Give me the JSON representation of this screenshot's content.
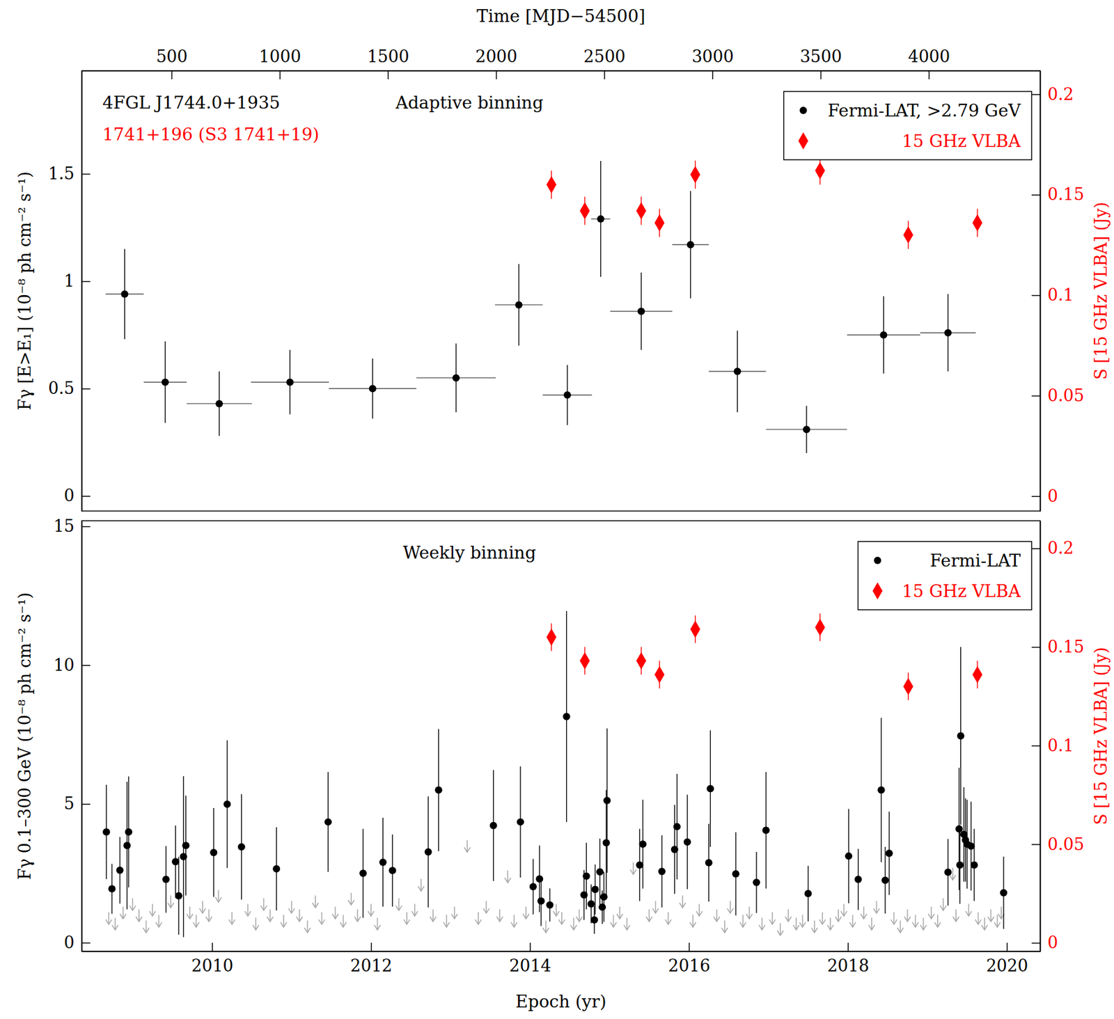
{
  "chart_data": [
    {
      "type": "scatter",
      "title": "Adaptive binning",
      "annotations": [
        {
          "text": "4FGL J1744.0+1935",
          "color": "#000000"
        },
        {
          "text": "1741+196 (S3 1741+19)",
          "color": "#ff0000"
        }
      ],
      "x2label": "Time [MJD−54500]",
      "ylabel": "Fγ [E>E₁] (10⁻⁸ ph cm⁻² s⁻¹)",
      "y2label": "S [15 GHz VLBA] (Jy)",
      "xlim": [
        2008.36,
        2020.42
      ],
      "x2lim": [
        85,
        4515
      ],
      "x2ticks": [
        500,
        1000,
        1500,
        2000,
        2500,
        3000,
        3500,
        4000
      ],
      "ylim": [
        -0.07,
        1.98
      ],
      "yticks": [
        0,
        0.5,
        1,
        1.5
      ],
      "y2lim": [
        -0.0074,
        0.2117
      ],
      "y2ticks": [
        0,
        0.05,
        0.1,
        0.15,
        0.2
      ],
      "legend": "upper right",
      "series": [
        {
          "name": "Fermi-LAT, >2.79 GeV",
          "color": "#000000",
          "marker": "circle",
          "x": [
            2008.9,
            2009.41,
            2010.09,
            2010.98,
            2012.02,
            2013.07,
            2013.86,
            2014.47,
            2014.89,
            2015.4,
            2016.02,
            2016.61,
            2017.48,
            2018.45,
            2019.26
          ],
          "x_err": [
            0.24,
            0.27,
            0.41,
            0.49,
            0.55,
            0.5,
            0.3,
            0.31,
            0.12,
            0.39,
            0.23,
            0.36,
            0.51,
            0.46,
            0.35
          ],
          "values": [
            0.94,
            0.53,
            0.43,
            0.53,
            0.5,
            0.55,
            0.89,
            0.47,
            1.29,
            0.86,
            1.17,
            0.58,
            0.31,
            0.75,
            0.76
          ],
          "y_err": [
            0.21,
            0.19,
            0.15,
            0.15,
            0.14,
            0.16,
            0.19,
            0.14,
            0.27,
            0.18,
            0.25,
            0.19,
            0.11,
            0.18,
            0.18
          ]
        },
        {
          "name": "15 GHz VLBA",
          "color": "#ff0000",
          "marker": "diamond",
          "axis": "y2",
          "x": [
            2014.27,
            2014.69,
            2015.4,
            2015.63,
            2016.08,
            2017.65,
            2018.76,
            2019.63
          ],
          "values": [
            0.155,
            0.142,
            0.142,
            0.136,
            0.16,
            0.162,
            0.13,
            0.136
          ],
          "y_err": [
            0.007,
            0.007,
            0.007,
            0.007,
            0.007,
            0.007,
            0.007,
            0.007
          ]
        }
      ]
    },
    {
      "type": "scatter",
      "title": "Weekly binning",
      "xlabel": "Epoch (yr)",
      "ylabel": "Fγ 0.1–300 GeV (10⁻⁸ ph cm⁻² s⁻¹)",
      "y2label": "S [15 GHz VLBA] (Jy)",
      "xlim": [
        2008.36,
        2020.42
      ],
      "xticks": [
        2010,
        2012,
        2014,
        2016,
        2018,
        2020
      ],
      "ylim": [
        -0.31,
        15.2
      ],
      "yticks": [
        0,
        5,
        10,
        15
      ],
      "y2lim": [
        -0.0043,
        0.214
      ],
      "y2ticks": [
        0,
        0.05,
        0.1,
        0.15,
        0.2
      ],
      "legend": "upper right",
      "series": [
        {
          "name": "Fermi-LAT",
          "color": "#000000",
          "marker": "circle",
          "x": [
            2008.67,
            2008.74,
            2008.84,
            2008.93,
            2008.95,
            2009.42,
            2009.54,
            2009.58,
            2009.64,
            2009.67,
            2010.02,
            2010.19,
            2010.37,
            2010.81,
            2011.46,
            2011.9,
            2012.15,
            2012.27,
            2012.72,
            2012.85,
            2013.54,
            2013.88,
            2014.04,
            2014.12,
            2014.14,
            2014.25,
            2014.46,
            2014.68,
            2014.71,
            2014.77,
            2014.82,
            2014.81,
            2014.88,
            2014.91,
            2014.93,
            2014.96,
            2014.97,
            2015.38,
            2015.42,
            2015.66,
            2015.82,
            2015.85,
            2015.98,
            2016.25,
            2016.27,
            2016.59,
            2016.85,
            2016.97,
            2017.5,
            2018.01,
            2018.13,
            2018.42,
            2018.47,
            2018.52,
            2019.26,
            2019.4,
            2019.41,
            2019.42,
            2019.46,
            2019.48,
            2019.5,
            2019.55,
            2019.59,
            2019.96
          ],
          "values": [
            3.99,
            1.94,
            2.61,
            3.5,
            3.99,
            2.28,
            2.92,
            1.69,
            3.1,
            3.5,
            3.25,
            4.99,
            3.45,
            2.66,
            4.35,
            2.5,
            2.9,
            2.6,
            3.27,
            5.5,
            4.22,
            4.35,
            2.02,
            2.3,
            1.5,
            1.36,
            8.15,
            1.72,
            2.4,
            1.4,
            1.92,
            0.82,
            2.55,
            1.28,
            1.65,
            3.6,
            5.12,
            2.8,
            3.55,
            2.57,
            3.36,
            4.18,
            3.63,
            2.88,
            5.55,
            2.48,
            2.17,
            4.05,
            1.77,
            3.12,
            2.28,
            5.5,
            2.25,
            3.22,
            2.54,
            4.1,
            2.8,
            7.45,
            3.9,
            3.7,
            3.55,
            3.48,
            2.8,
            1.8
          ],
          "y_err": [
            1.7,
            0.9,
            1.2,
            2.3,
            2.0,
            1.2,
            1.3,
            1.4,
            2.9,
            1.8,
            1.6,
            2.3,
            1.9,
            1.5,
            1.8,
            1.6,
            1.6,
            1.3,
            2.0,
            2.2,
            2.0,
            2.0,
            1.0,
            1.2,
            0.9,
            0.6,
            3.8,
            0.9,
            1.2,
            0.7,
            0.9,
            0.5,
            1.2,
            0.6,
            0.9,
            1.9,
            2.6,
            1.3,
            1.6,
            1.3,
            1.6,
            1.9,
            1.7,
            1.4,
            2.1,
            1.5,
            1.1,
            2.1,
            1.0,
            1.7,
            1.1,
            2.6,
            1.2,
            1.5,
            1.2,
            2.2,
            1.4,
            3.2,
            1.7,
            1.5,
            1.6,
            1.6,
            1.3,
            1.3
          ]
        },
        {
          "name": "15 GHz VLBA",
          "color": "#ff0000",
          "marker": "diamond",
          "axis": "y2",
          "x": [
            2014.27,
            2014.69,
            2015.4,
            2015.63,
            2016.08,
            2017.65,
            2018.76,
            2019.63
          ],
          "values": [
            0.155,
            0.143,
            0.143,
            0.136,
            0.159,
            0.16,
            0.13,
            0.136
          ],
          "y_err": [
            0.007,
            0.007,
            0.007,
            0.007,
            0.007,
            0.007,
            0.007,
            0.007
          ]
        }
      ],
      "upper_limits": {
        "color": "#aaaaaa",
        "x": [
          2008.7,
          2008.78,
          2008.88,
          2009.0,
          2009.08,
          2009.17,
          2009.25,
          2009.33,
          2009.48,
          2009.72,
          2009.8,
          2009.88,
          2009.96,
          2010.08,
          2010.25,
          2010.45,
          2010.55,
          2010.65,
          2010.73,
          2010.9,
          2011.0,
          2011.1,
          2011.2,
          2011.3,
          2011.38,
          2011.55,
          2011.65,
          2011.75,
          2011.83,
          2012.0,
          2012.08,
          2012.35,
          2012.45,
          2012.55,
          2012.63,
          2012.78,
          2012.95,
          2013.05,
          2013.21,
          2013.35,
          2013.45,
          2013.62,
          2013.72,
          2013.8,
          2013.95,
          2014.2,
          2014.33,
          2014.4,
          2014.55,
          2014.62,
          2015.05,
          2015.13,
          2015.22,
          2015.3,
          2015.5,
          2015.58,
          2015.74,
          2015.92,
          2016.05,
          2016.13,
          2016.35,
          2016.45,
          2016.52,
          2016.68,
          2016.76,
          2016.92,
          2017.05,
          2017.15,
          2017.25,
          2017.35,
          2017.43,
          2017.58,
          2017.68,
          2017.78,
          2017.88,
          2017.95,
          2018.06,
          2018.2,
          2018.3,
          2018.36,
          2018.58,
          2018.66,
          2018.75,
          2018.85,
          2018.95,
          2019.05,
          2019.13,
          2019.2,
          2019.32,
          2019.36,
          2019.52,
          2019.64,
          2019.72,
          2019.8,
          2019.88,
          2019.93
        ],
        "values": [
          1.1,
          0.9,
          1.3,
          1.6,
          1.2,
          0.8,
          1.4,
          1.0,
          1.7,
          1.3,
          1.0,
          1.5,
          1.2,
          1.9,
          1.1,
          1.4,
          0.9,
          1.6,
          1.2,
          1.0,
          1.5,
          1.2,
          0.8,
          1.7,
          1.1,
          1.3,
          1.0,
          1.8,
          1.2,
          1.4,
          0.9,
          1.6,
          1.1,
          1.4,
          2.3,
          1.2,
          1.0,
          1.3,
          3.7,
          1.1,
          1.5,
          1.2,
          2.6,
          1.0,
          1.3,
          0.8,
          1.4,
          1.1,
          0.9,
          1.2,
          1.0,
          1.3,
          0.9,
          2.9,
          1.2,
          1.5,
          1.1,
          1.7,
          1.0,
          1.4,
          1.2,
          0.8,
          1.5,
          1.0,
          1.3,
          0.9,
          1.1,
          0.7,
          1.2,
          0.9,
          1.0,
          0.8,
          1.1,
          0.9,
          1.2,
          1.4,
          1.0,
          1.3,
          0.9,
          1.5,
          1.1,
          0.8,
          1.2,
          1.0,
          0.9,
          1.3,
          1.0,
          1.6,
          2.7,
          1.2,
          1.4,
          1.1,
          0.9,
          1.2,
          1.0,
          1.3
        ]
      }
    }
  ]
}
